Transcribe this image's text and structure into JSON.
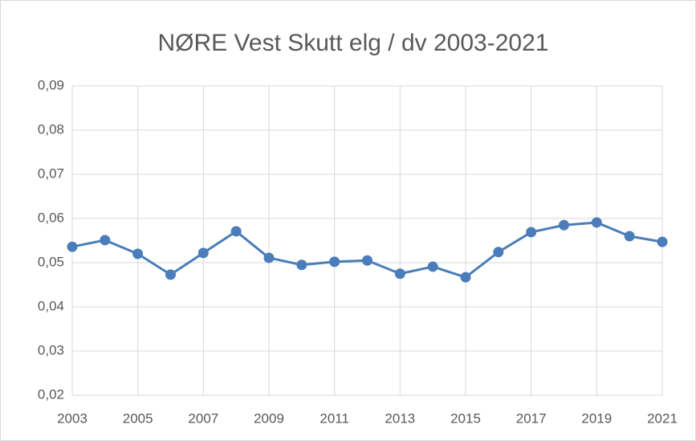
{
  "chart_data": {
    "type": "line",
    "title": "NØRE Vest Skutt elg / dv 2003-2021",
    "x": [
      2003,
      2004,
      2005,
      2006,
      2007,
      2008,
      2009,
      2010,
      2011,
      2012,
      2013,
      2014,
      2015,
      2016,
      2017,
      2018,
      2019,
      2020,
      2021
    ],
    "series": [
      {
        "color": "#4a7dba",
        "values": [
          0.0536,
          0.0551,
          0.052,
          0.0473,
          0.0522,
          0.0571,
          0.0511,
          0.0495,
          0.0502,
          0.0505,
          0.0475,
          0.0491,
          0.0467,
          0.0524,
          0.0569,
          0.0585,
          0.0591,
          0.056,
          0.0547
        ]
      }
    ],
    "xlim": [
      2003,
      2021
    ],
    "xticks": [
      2003,
      2005,
      2007,
      2009,
      2011,
      2013,
      2015,
      2017,
      2019,
      2021
    ],
    "ylim": [
      0.02,
      0.09
    ],
    "yticks": [
      {
        "value": 0.02,
        "label": "0,02"
      },
      {
        "value": 0.03,
        "label": "0,03"
      },
      {
        "value": 0.04,
        "label": "0,04"
      },
      {
        "value": 0.05,
        "label": "0,05"
      },
      {
        "value": 0.06,
        "label": "0,06"
      },
      {
        "value": 0.07,
        "label": "0,07"
      },
      {
        "value": 0.08,
        "label": "0,08"
      },
      {
        "value": 0.09,
        "label": "0,09"
      }
    ],
    "grid": true
  }
}
